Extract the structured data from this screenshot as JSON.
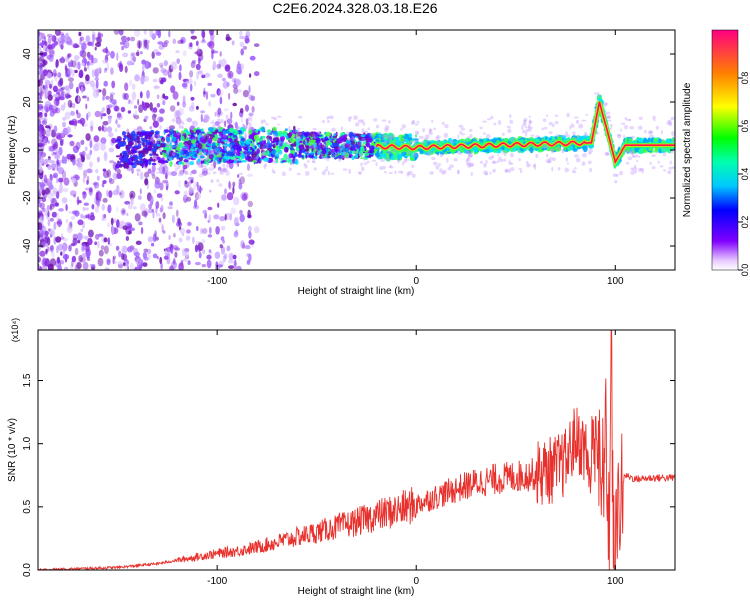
{
  "title": "C2E6.2024.328.03.18.E26",
  "colors": {
    "snr_line": "#e8312c",
    "axis": "#000000"
  },
  "chart_data": [
    {
      "type": "heatmap",
      "xlabel": "Height of straight line (km)",
      "ylabel": "Frequency (Hz)",
      "xlim": [
        -190,
        130
      ],
      "ylim": [
        -50,
        50
      ],
      "x_ticks": [
        -100,
        0,
        100
      ],
      "y_ticks": [
        -40,
        -20,
        0,
        20,
        40
      ],
      "colorbar": {
        "label": "Normalized spectral amplitude",
        "range": [
          0.0,
          1.0
        ],
        "ticks": [
          0.0,
          0.2,
          0.4,
          0.6,
          0.8
        ],
        "tick_labels": [
          "0.0",
          "0.2",
          "0.4",
          "0.6",
          "0.8"
        ],
        "colormap": "rainbow (violet-blue-cyan-green-yellow-red)"
      },
      "ridge": [
        [
          -150,
          0
        ],
        [
          -100,
          2
        ],
        [
          -50,
          2
        ],
        [
          0,
          1
        ],
        [
          40,
          2
        ],
        [
          88,
          3
        ],
        [
          92,
          20
        ],
        [
          96,
          8
        ],
        [
          100,
          -5
        ],
        [
          105,
          2
        ],
        [
          130,
          2
        ]
      ]
    },
    {
      "type": "line",
      "xlabel": "Height of straight line (km)",
      "ylabel": "SNR (10 * v/v)",
      "y_multiplier": "(x10⁴)",
      "xlim": [
        -190,
        130
      ],
      "ylim": [
        0,
        1.9
      ],
      "x_ticks": [
        -100,
        0,
        100
      ],
      "y_ticks": [
        0.0,
        0.5,
        1.0,
        1.5
      ],
      "y_tick_labels": [
        "0.0",
        "0.5",
        "1.0",
        "1.5"
      ],
      "series": [
        {
          "x": [
            -190,
            -170,
            -150,
            -130,
            -115,
            -100,
            -90,
            -80,
            -70,
            -60,
            -50,
            -40,
            -30,
            -20,
            -10,
            0,
            10,
            20,
            30,
            40,
            50,
            60,
            70,
            75,
            80,
            85,
            88,
            90,
            93,
            95,
            97,
            98,
            99,
            100,
            102,
            105,
            110,
            120,
            130
          ],
          "y": [
            0.0,
            0.01,
            0.02,
            0.05,
            0.09,
            0.13,
            0.15,
            0.18,
            0.22,
            0.26,
            0.3,
            0.34,
            0.38,
            0.43,
            0.47,
            0.52,
            0.58,
            0.64,
            0.69,
            0.72,
            0.74,
            0.76,
            0.8,
            0.85,
            1.05,
            0.95,
            0.7,
            1.3,
            0.5,
            1.1,
            0.3,
            1.9,
            0.1,
            0.05,
            0.6,
            0.75,
            0.72,
            0.73,
            0.73
          ]
        }
      ]
    }
  ]
}
